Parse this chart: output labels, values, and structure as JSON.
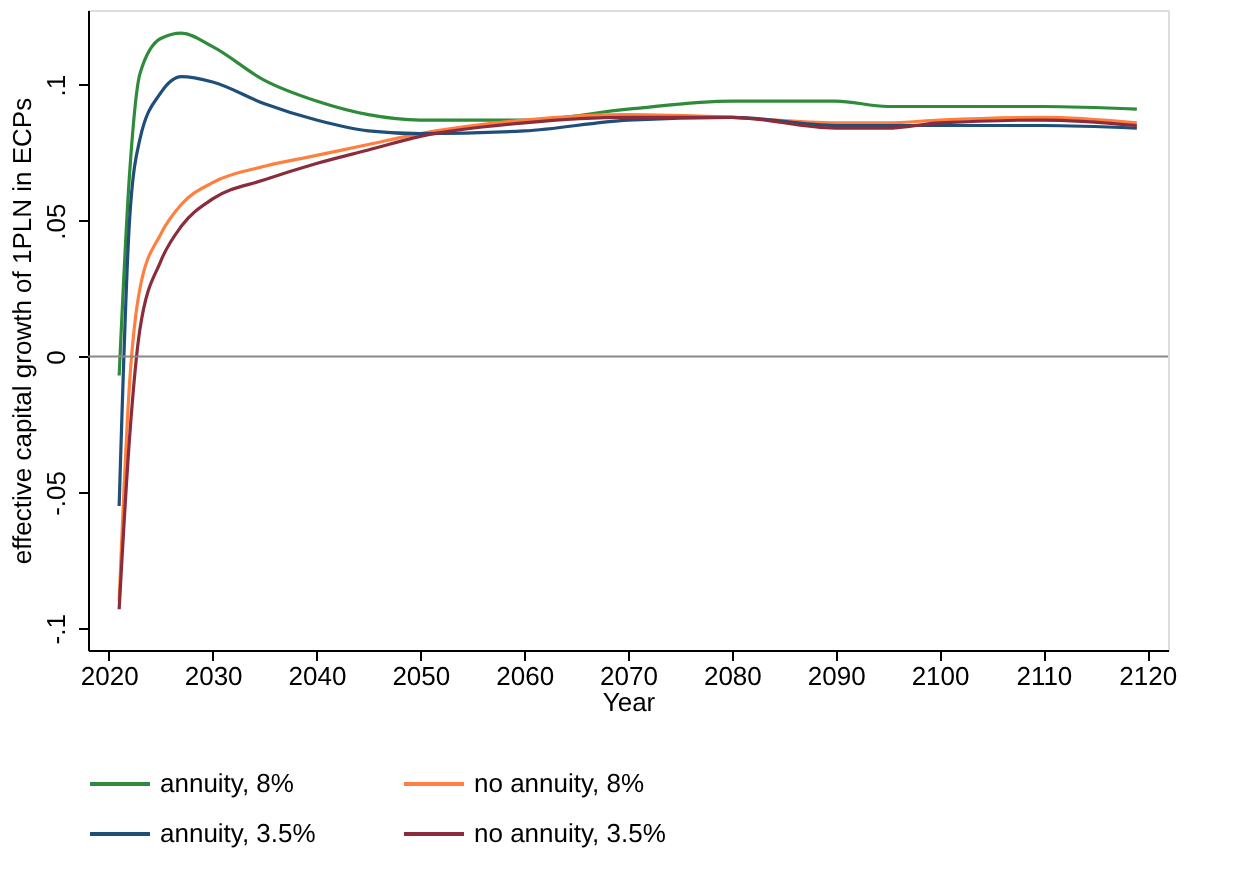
{
  "chart_data": {
    "type": "line",
    "xlabel": "Year",
    "ylabel": "effective capital growth of 1PLN in ECPs",
    "xlim": [
      2018,
      2122
    ],
    "xticks": [
      2020,
      2030,
      2040,
      2050,
      2060,
      2070,
      2080,
      2090,
      2100,
      2110,
      2120
    ],
    "ylim": [
      -0.108,
      0.1275
    ],
    "yticks": [
      {
        "value": -0.1,
        "label": "-.1"
      },
      {
        "value": -0.05,
        "label": "-.05"
      },
      0,
      {
        "value": 0.05,
        "label": ".05"
      },
      {
        "value": 0.1,
        "label": ".1"
      }
    ],
    "x": [
      2021,
      2022,
      2023,
      2025,
      2027,
      2030,
      2035,
      2040,
      2045,
      2050,
      2060,
      2070,
      2080,
      2090,
      2095,
      2100,
      2110,
      2119
    ],
    "series": [
      {
        "name": "annuity, 8%",
        "color": "#2e8b3a",
        "values": [
          -0.007,
          0.067,
          0.104,
          0.117,
          0.119,
          0.114,
          0.1016,
          0.094,
          0.089,
          0.087,
          0.087,
          0.091,
          0.094,
          0.094,
          0.092,
          0.092,
          0.092,
          0.091
        ]
      },
      {
        "name": "no annuity, 8%",
        "color": "#ff7f3f",
        "values": [
          -0.09,
          -0.01,
          0.025,
          0.045,
          0.056,
          0.064,
          0.07,
          0.074,
          0.078,
          0.082,
          0.087,
          0.089,
          0.088,
          0.086,
          0.086,
          0.087,
          0.088,
          0.086
        ]
      },
      {
        "name": "annuity, 3.5%",
        "color": "#1f4e79",
        "values": [
          -0.055,
          0.05,
          0.08,
          0.097,
          0.103,
          0.101,
          0.093,
          0.087,
          0.083,
          0.082,
          0.083,
          0.087,
          0.088,
          0.085,
          0.085,
          0.085,
          0.085,
          0.084
        ]
      },
      {
        "name": "no annuity, 3.5%",
        "color": "#8b2c3c",
        "values": [
          -0.093,
          -0.03,
          0.01,
          0.035,
          0.048,
          0.058,
          0.065,
          0.071,
          0.076,
          0.081,
          0.086,
          0.088,
          0.088,
          0.084,
          0.084,
          0.086,
          0.087,
          0.085
        ]
      }
    ],
    "ref_lines": [
      {
        "axis": "y",
        "value": 0,
        "label": null,
        "color": "#888888"
      }
    ],
    "grid": false,
    "legend": "bottom",
    "line_style": "solid",
    "marker": "none"
  }
}
